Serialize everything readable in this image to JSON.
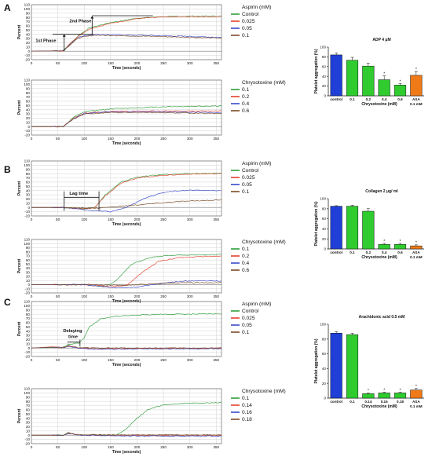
{
  "panels": [
    {
      "letter": "A",
      "traces": [
        {
          "legend_title": "Aspirin (mM)",
          "legend_items": [
            {
              "label": "Control",
              "color": "#2e9e3a"
            },
            {
              "label": "0.025",
              "color": "#e4402d"
            },
            {
              "label": "0.05",
              "color": "#3949c8"
            },
            {
              "label": "0.1",
              "color": "#7b4a25"
            }
          ],
          "annotations": [
            {
              "text": "2nd Phase"
            },
            {
              "text": "1st Phase"
            }
          ]
        },
        {
          "legend_title": "Chrysotoxine (mM)",
          "legend_items": [
            {
              "label": "0.1",
              "color": "#2e9e3a"
            },
            {
              "label": "0.2",
              "color": "#e4402d"
            },
            {
              "label": "0.4",
              "color": "#3949c8"
            },
            {
              "label": "0.6",
              "color": "#7b4a25"
            }
          ],
          "annotations": []
        }
      ],
      "bar_chart": {
        "title": "ADP 4 μM",
        "ylabel": "Platelet aggregation (%)",
        "xlabel": "Chrysotoxine (mM)",
        "yticks": [
          "0",
          "20",
          "40",
          "60",
          "80",
          "100"
        ],
        "bars": [
          {
            "label": "control",
            "value": 84,
            "err": 4,
            "color": "#1f3fd6",
            "star": false
          },
          {
            "label": "0.1",
            "value": 73,
            "err": 6,
            "color": "#2fcb2f",
            "star": false
          },
          {
            "label": "0.2",
            "value": 61,
            "err": 6,
            "color": "#2fcb2f",
            "star": false
          },
          {
            "label": "0.4",
            "value": 33,
            "err": 8,
            "color": "#2fcb2f",
            "star": true
          },
          {
            "label": "0.6",
            "value": 22,
            "err": 3,
            "color": "#2fcb2f",
            "star": true
          },
          {
            "label": "ASA",
            "label2": "0.1 mM",
            "value": 42,
            "err": 8,
            "color": "#f07a18",
            "star": true
          }
        ]
      }
    },
    {
      "letter": "B",
      "traces": [
        {
          "legend_title": "Aspirin (mM)",
          "legend_items": [
            {
              "label": "Control",
              "color": "#2e9e3a"
            },
            {
              "label": "0.025",
              "color": "#e4402d"
            },
            {
              "label": "0.05",
              "color": "#3949c8"
            },
            {
              "label": "0.1",
              "color": "#7b4a25"
            }
          ],
          "annotations": [
            {
              "text": "Lag time"
            }
          ]
        },
        {
          "legend_title": "Chrysotoxine (mM)",
          "legend_items": [
            {
              "label": "0.1",
              "color": "#2e9e3a"
            },
            {
              "label": "0.2",
              "color": "#e4402d"
            },
            {
              "label": "0.4",
              "color": "#3949c8"
            },
            {
              "label": "0.6",
              "color": "#7b4a25"
            }
          ],
          "annotations": []
        }
      ],
      "bar_chart": {
        "title": "Collagen 2 μg/ ml",
        "ylabel": "Platelet aggregation (%)",
        "xlabel": "Chrysotoxine (mM)",
        "yticks": [
          "0",
          "20",
          "40",
          "60",
          "80",
          "100"
        ],
        "bars": [
          {
            "label": "control",
            "value": 85,
            "err": 1,
            "color": "#1f3fd6",
            "star": false
          },
          {
            "label": "0.1",
            "value": 85,
            "err": 2,
            "color": "#2fcb2f",
            "star": false
          },
          {
            "label": "0.2",
            "value": 75,
            "err": 5,
            "color": "#2fcb2f",
            "star": false
          },
          {
            "label": "0.4",
            "value": 9,
            "err": 2,
            "color": "#2fcb2f",
            "star": true
          },
          {
            "label": "0.6",
            "value": 9,
            "err": 2,
            "color": "#2fcb2f",
            "star": true
          },
          {
            "label": "ASA",
            "label2": "0.1 mM",
            "value": 6,
            "err": 2,
            "color": "#f07a18",
            "star": true
          }
        ]
      }
    },
    {
      "letter": "C",
      "traces": [
        {
          "legend_title": "Aspirin (mM)",
          "legend_items": [
            {
              "label": "Control",
              "color": "#2e9e3a"
            },
            {
              "label": "0.025",
              "color": "#e4402d"
            },
            {
              "label": "0.05",
              "color": "#3949c8"
            },
            {
              "label": "0.1",
              "color": "#7b4a25"
            }
          ],
          "annotations": [
            {
              "text": "Delaying"
            },
            {
              "text": "time"
            }
          ]
        },
        {
          "legend_title": "Chrysotoxine (mM)",
          "legend_items": [
            {
              "label": "0.1",
              "color": "#2e9e3a"
            },
            {
              "label": "0.14",
              "color": "#e4402d"
            },
            {
              "label": "0.16",
              "color": "#3949c8"
            },
            {
              "label": "0.18",
              "color": "#7b4a25"
            }
          ],
          "annotations": []
        }
      ],
      "bar_chart": {
        "title": "Arachidonic acid 0.5 mM",
        "ylabel": "Platelet aggregation (%)",
        "xlabel": "Chrysotoxine (mM)",
        "yticks": [
          "0",
          "20",
          "40",
          "60",
          "80",
          "100"
        ],
        "bars": [
          {
            "label": "control",
            "value": 88,
            "err": 2,
            "color": "#1f3fd6",
            "star": false
          },
          {
            "label": "0.1",
            "value": 86,
            "err": 2,
            "color": "#2fcb2f",
            "star": false
          },
          {
            "label": "0.14",
            "value": 6,
            "err": 1,
            "color": "#2fcb2f",
            "star": true
          },
          {
            "label": "0.16",
            "value": 7,
            "err": 1,
            "color": "#2fcb2f",
            "star": true
          },
          {
            "label": "0.18",
            "value": 7,
            "err": 1,
            "color": "#2fcb2f",
            "star": true
          },
          {
            "label": "ASA",
            "label2": "0.1 mM",
            "value": 11,
            "err": 2,
            "color": "#f07a18",
            "star": true
          }
        ]
      }
    }
  ],
  "trace_axis": {
    "ylabel": "Percent",
    "xlabel": "Time (seconds)",
    "yticks": [
      "-20",
      "-10",
      "0",
      "10",
      "20",
      "30",
      "40",
      "50",
      "60",
      "70",
      "80",
      "90",
      "100",
      "110"
    ],
    "xticks": [
      "0",
      "50",
      "100",
      "150",
      "200",
      "250",
      "300",
      "350"
    ]
  },
  "chart_data": [
    {
      "type": "line",
      "title": "",
      "xlabel": "Time (seconds)",
      "ylabel": "Percent",
      "xlim": [
        0,
        360
      ],
      "ylim": [
        -20,
        110
      ],
      "series": [
        {
          "name": "Control",
          "x": [
            0,
            60,
            75,
            90,
            110,
            150,
            200,
            250,
            300,
            360
          ],
          "y": [
            0,
            1,
            20,
            38,
            55,
            68,
            78,
            82,
            83,
            83
          ]
        },
        {
          "name": "0.025",
          "x": [
            0,
            60,
            75,
            90,
            110,
            150,
            200,
            250,
            300,
            360
          ],
          "y": [
            0,
            1,
            20,
            37,
            53,
            66,
            77,
            81,
            82,
            82
          ]
        },
        {
          "name": "0.05",
          "x": [
            0,
            60,
            75,
            90,
            120,
            200,
            300,
            360
          ],
          "y": [
            0,
            1,
            18,
            34,
            40,
            38,
            35,
            33
          ]
        },
        {
          "name": "0.1",
          "x": [
            0,
            60,
            75,
            90,
            120,
            200,
            300,
            360
          ],
          "y": [
            0,
            1,
            17,
            32,
            38,
            36,
            33,
            31
          ]
        }
      ]
    },
    {
      "type": "line",
      "title": "",
      "xlabel": "Time (seconds)",
      "ylabel": "Percent",
      "xlim": [
        0,
        360
      ],
      "ylim": [
        -20,
        110
      ],
      "series": [
        {
          "name": "0.1",
          "x": [
            0,
            60,
            80,
            100,
            150,
            250,
            360
          ],
          "y": [
            0,
            0,
            22,
            35,
            42,
            47,
            49
          ]
        },
        {
          "name": "0.2",
          "x": [
            0,
            60,
            80,
            100,
            150,
            250,
            360
          ],
          "y": [
            0,
            0,
            20,
            32,
            36,
            37,
            37
          ]
        },
        {
          "name": "0.4",
          "x": [
            0,
            60,
            80,
            100,
            150,
            250,
            360
          ],
          "y": [
            0,
            0,
            19,
            31,
            35,
            35,
            33
          ]
        },
        {
          "name": "0.6",
          "x": [
            0,
            60,
            80,
            100,
            150,
            250,
            360
          ],
          "y": [
            0,
            0,
            18,
            30,
            33,
            33,
            31
          ]
        }
      ]
    },
    {
      "type": "line",
      "title": "",
      "xlabel": "Time (seconds)",
      "ylabel": "Percent",
      "xlim": [
        0,
        360
      ],
      "ylim": [
        -20,
        110
      ],
      "series": [
        {
          "name": "Control",
          "x": [
            0,
            60,
            100,
            120,
            140,
            170,
            200,
            250,
            300,
            360
          ],
          "y": [
            0,
            0,
            -3,
            0,
            30,
            60,
            72,
            78,
            80,
            81
          ]
        },
        {
          "name": "0.025",
          "x": [
            0,
            60,
            100,
            120,
            140,
            170,
            200,
            250,
            300,
            360
          ],
          "y": [
            0,
            0,
            -4,
            0,
            28,
            58,
            70,
            76,
            79,
            80
          ]
        },
        {
          "name": "0.05",
          "x": [
            0,
            60,
            120,
            150,
            180,
            220,
            260,
            300,
            360
          ],
          "y": [
            0,
            0,
            -8,
            -10,
            0,
            25,
            38,
            41,
            40
          ]
        },
        {
          "name": "0.1",
          "x": [
            0,
            60,
            120,
            200,
            280,
            360
          ],
          "y": [
            0,
            0,
            -2,
            6,
            14,
            18
          ]
        }
      ]
    },
    {
      "type": "line",
      "title": "",
      "xlabel": "Time (seconds)",
      "ylabel": "Percent",
      "xlim": [
        0,
        360
      ],
      "ylim": [
        -20,
        110
      ],
      "series": [
        {
          "name": "0.1",
          "x": [
            0,
            100,
            140,
            160,
            190,
            230,
            280,
            360
          ],
          "y": [
            0,
            0,
            -5,
            10,
            50,
            68,
            72,
            74
          ]
        },
        {
          "name": "0.2",
          "x": [
            0,
            100,
            150,
            180,
            210,
            240,
            280,
            360
          ],
          "y": [
            0,
            0,
            -5,
            -2,
            30,
            56,
            66,
            70
          ]
        },
        {
          "name": "0.4",
          "x": [
            0,
            100,
            160,
            200,
            240,
            280,
            320,
            360
          ],
          "y": [
            0,
            0,
            -8,
            -6,
            2,
            8,
            10,
            9
          ]
        },
        {
          "name": "0.6",
          "x": [
            0,
            120,
            180,
            240,
            300,
            360
          ],
          "y": [
            0,
            0,
            -2,
            3,
            5,
            5
          ]
        }
      ]
    },
    {
      "type": "line",
      "title": "",
      "xlabel": "Time (seconds)",
      "ylabel": "Percent",
      "xlim": [
        0,
        360
      ],
      "ylim": [
        -20,
        110
      ],
      "series": [
        {
          "name": "Control",
          "x": [
            0,
            60,
            70,
            80,
            90,
            100,
            110,
            130,
            160,
            200,
            250,
            300,
            360
          ],
          "y": [
            0,
            2,
            8,
            10,
            12,
            25,
            50,
            68,
            75,
            78,
            80,
            80,
            81
          ]
        },
        {
          "name": "0.025",
          "x": [
            0,
            40,
            60,
            70,
            90,
            120,
            200,
            300,
            360
          ],
          "y": [
            0,
            3,
            1,
            5,
            0,
            -2,
            -1,
            -1,
            -1
          ]
        },
        {
          "name": "0.05",
          "x": [
            0,
            40,
            60,
            70,
            90,
            120,
            200,
            300,
            360
          ],
          "y": [
            0,
            2,
            0,
            4,
            0,
            -3,
            -2,
            -2,
            -2
          ]
        },
        {
          "name": "0.1",
          "x": [
            0,
            40,
            60,
            70,
            90,
            120,
            200,
            300,
            360
          ],
          "y": [
            0,
            2,
            0,
            6,
            1,
            0,
            0,
            0,
            0
          ]
        }
      ]
    },
    {
      "type": "line",
      "title": "",
      "xlabel": "Time (seconds)",
      "ylabel": "Percent",
      "xlim": [
        0,
        360
      ],
      "ylim": [
        -20,
        110
      ],
      "series": [
        {
          "name": "0.1",
          "x": [
            0,
            60,
            70,
            90,
            160,
            180,
            200,
            220,
            250,
            300,
            360
          ],
          "y": [
            0,
            0,
            6,
            0,
            0,
            15,
            40,
            60,
            72,
            76,
            77
          ]
        },
        {
          "name": "0.14",
          "x": [
            0,
            60,
            70,
            90,
            200,
            300,
            360
          ],
          "y": [
            0,
            0,
            5,
            0,
            -1,
            -1,
            -1
          ]
        },
        {
          "name": "0.16",
          "x": [
            0,
            60,
            70,
            90,
            200,
            300,
            360
          ],
          "y": [
            0,
            0,
            4,
            0,
            -2,
            -2,
            -2
          ]
        },
        {
          "name": "0.18",
          "x": [
            0,
            60,
            70,
            90,
            200,
            300,
            360
          ],
          "y": [
            0,
            0,
            5,
            1,
            1,
            1,
            1
          ]
        }
      ]
    },
    {
      "type": "bar",
      "title": "ADP 4 μM",
      "xlabel": "Chrysotoxine (mM)",
      "ylabel": "Platelet aggregation (%)",
      "ylim": [
        0,
        100
      ],
      "categories": [
        "control",
        "0.1",
        "0.2",
        "0.4",
        "0.6",
        "ASA 0.1 mM"
      ],
      "values": [
        84,
        73,
        61,
        33,
        22,
        42
      ]
    },
    {
      "type": "bar",
      "title": "Collagen 2 μg/ ml",
      "xlabel": "Chrysotoxine (mM)",
      "ylabel": "Platelet aggregation (%)",
      "ylim": [
        0,
        100
      ],
      "categories": [
        "control",
        "0.1",
        "0.2",
        "0.4",
        "0.6",
        "ASA 0.1 mM"
      ],
      "values": [
        85,
        85,
        75,
        9,
        9,
        6
      ]
    },
    {
      "type": "bar",
      "title": "Arachidonic acid 0.5 mM",
      "xlabel": "Chrysotoxine (mM)",
      "ylabel": "Platelet aggregation (%)",
      "ylim": [
        0,
        100
      ],
      "categories": [
        "control",
        "0.1",
        "0.14",
        "0.16",
        "0.18",
        "ASA 0.1 mM"
      ],
      "values": [
        88,
        86,
        6,
        7,
        7,
        11
      ]
    }
  ]
}
